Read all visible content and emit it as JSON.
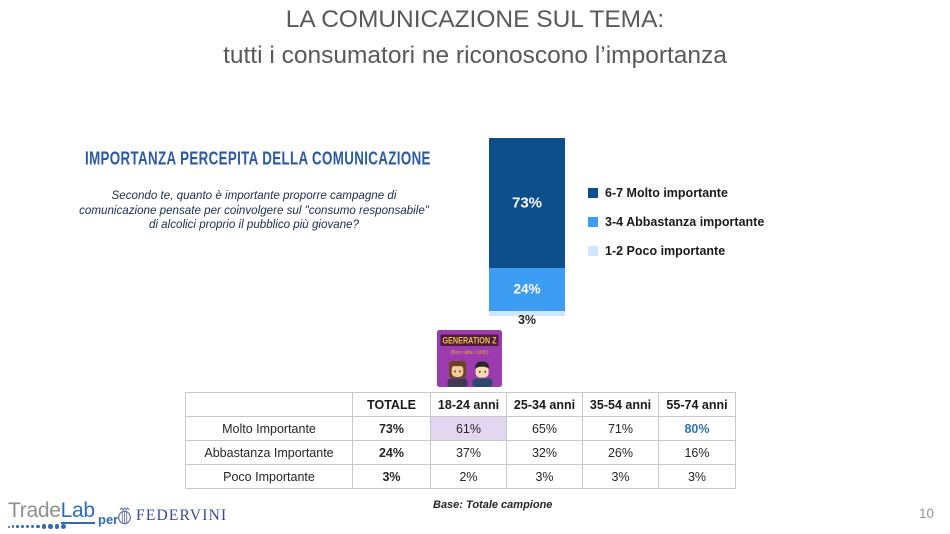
{
  "slide": {
    "title_line1": "LA COMUNICAZIONE SUL TEMA:",
    "title_line2": "tutti i consumatori ne riconoscono l’importanza",
    "page_number": "10"
  },
  "left_panel": {
    "heading": "IMPORTANZA PERCEPITA DELLA COMUNICAZIONE",
    "question": "Secondo te, quanto è importante proporre campagne di comunicazione pensate per coinvolgere sul \"consumo responsabile\" di alcolici proprio il pubblico più giovane?"
  },
  "chart_data": {
    "type": "bar",
    "stacked": true,
    "categories": [
      ""
    ],
    "series": [
      {
        "name": "6-7 Molto importante",
        "values": [
          73
        ],
        "label": "73%",
        "color": "#0d4e8c"
      },
      {
        "name": "3-4 Abbastanza importante",
        "values": [
          24
        ],
        "label": "24%",
        "color": "#3d9df3"
      },
      {
        "name": "1-2 Poco importante",
        "values": [
          3
        ],
        "label": "3%",
        "color": "#cfe6fc"
      }
    ],
    "ylim": [
      0,
      100
    ],
    "legend_position": "right",
    "value_labels": true
  },
  "genz_badge": {
    "title": "GENERATION Z",
    "subtitle": "(Born after 1995)",
    "bg_color": "#9b3bae",
    "banner_color": "#4e1b45",
    "title_color": "#f2c335",
    "subtitle_color": "#eba93c"
  },
  "table": {
    "columns": [
      "TOTALE",
      "18-24 anni",
      "25-34 anni",
      "35-54 anni",
      "55-74 anni"
    ],
    "rows": [
      {
        "label": "Molto Importante",
        "values": [
          "73%",
          "61%",
          "65%",
          "71%",
          "80%"
        ]
      },
      {
        "label": "Abbastanza Importante",
        "values": [
          "24%",
          "37%",
          "32%",
          "26%",
          "16%"
        ]
      },
      {
        "label": "Poco Importante",
        "values": [
          "3%",
          "2%",
          "3%",
          "3%",
          "3%"
        ]
      }
    ],
    "highlight_cell": {
      "row": 0,
      "col": 1,
      "color": "#e3d6f1"
    },
    "accent_cell": {
      "row": 0,
      "col": 4,
      "color": "#2e75b6"
    }
  },
  "footer": {
    "base_note": "Base: Totale campione",
    "tradelab_trade": "Trade",
    "tradelab_lab": "Lab",
    "per_label": "per",
    "federvini_label": "FEDERVINI"
  },
  "colors": {
    "title_gray": "#595959",
    "heading_blue": "#2b5aa5",
    "table_border": "#c8c8c8"
  }
}
